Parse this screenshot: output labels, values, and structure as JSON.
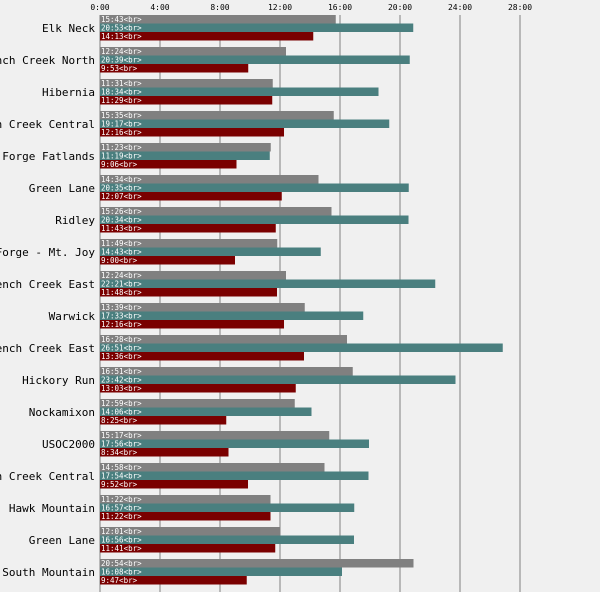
{
  "chart_data": {
    "type": "bar",
    "orientation": "horizontal",
    "title": "",
    "xlabel": "",
    "ylabel": "",
    "x_unit": "hours (elapsed time)",
    "xlim": [
      0,
      32
    ],
    "x_ticks": [
      0,
      4,
      8,
      12,
      16,
      20,
      24,
      28
    ],
    "x_tick_labels": [
      "0:00",
      "4:00",
      "8:00",
      "12:00",
      "16:00",
      "20:00",
      "24:00",
      "28:00"
    ],
    "grid": true,
    "legend": "none",
    "label_suffix": "<br>",
    "categories": [
      "Elk Neck",
      "French Creek North",
      "Hibernia",
      "French Creek Central",
      "Valley Forge Fatlands",
      "Green Lane",
      "Ridley",
      "Valley Forge - Mt. Joy",
      "French Creek East",
      "Warwick",
      "French Creek East",
      "Hickory Run",
      "Nockamixon",
      "USOC2000",
      "French Creek Central",
      "Hawk Mountain",
      "Green Lane",
      "South Mountain"
    ],
    "series": [
      {
        "color": "#808080",
        "labels": [
          "15:43",
          "12:24",
          "11:31",
          "15:35",
          "11:23",
          "14:34",
          "15:26",
          "11:49",
          "12:24",
          "13:39",
          "16:28",
          "16:51",
          "12:59",
          "15:17",
          "14:58",
          "11:22",
          "12:01",
          "20:54"
        ],
        "values": [
          15.717,
          12.4,
          11.517,
          15.583,
          11.383,
          14.567,
          15.433,
          11.817,
          12.4,
          13.65,
          16.467,
          16.85,
          12.983,
          15.283,
          14.967,
          11.367,
          12.017,
          20.9
        ]
      },
      {
        "color": "#4a7f7f",
        "labels": [
          "20:53",
          "20:39",
          "18:34",
          "19:17",
          "11:19",
          "20:35",
          "20:34",
          "14:43",
          "22:21",
          "17:33",
          "26:51",
          "23:42",
          "14:06",
          "17:56",
          "17:54",
          "16:57",
          "16:56",
          "16:08"
        ],
        "values": [
          20.883,
          20.65,
          18.567,
          19.283,
          11.317,
          20.583,
          20.567,
          14.717,
          22.35,
          17.55,
          26.85,
          23.7,
          14.1,
          17.933,
          17.9,
          16.95,
          16.933,
          16.133
        ]
      },
      {
        "color": "#7a0000",
        "labels": [
          "14:13",
          "9:53",
          "11:29",
          "12:16",
          "9:06",
          "12:07",
          "11:43",
          "9:00",
          "11:48",
          "12:16",
          "13:36",
          "13:03",
          "8:25",
          "8:34",
          "9:52",
          "11:22",
          "11:41",
          "9:47"
        ],
        "values": [
          14.217,
          9.883,
          11.483,
          12.267,
          9.1,
          12.117,
          11.717,
          9.0,
          11.8,
          12.267,
          13.6,
          13.05,
          8.417,
          8.567,
          9.867,
          11.367,
          11.683,
          9.783
        ]
      }
    ]
  }
}
